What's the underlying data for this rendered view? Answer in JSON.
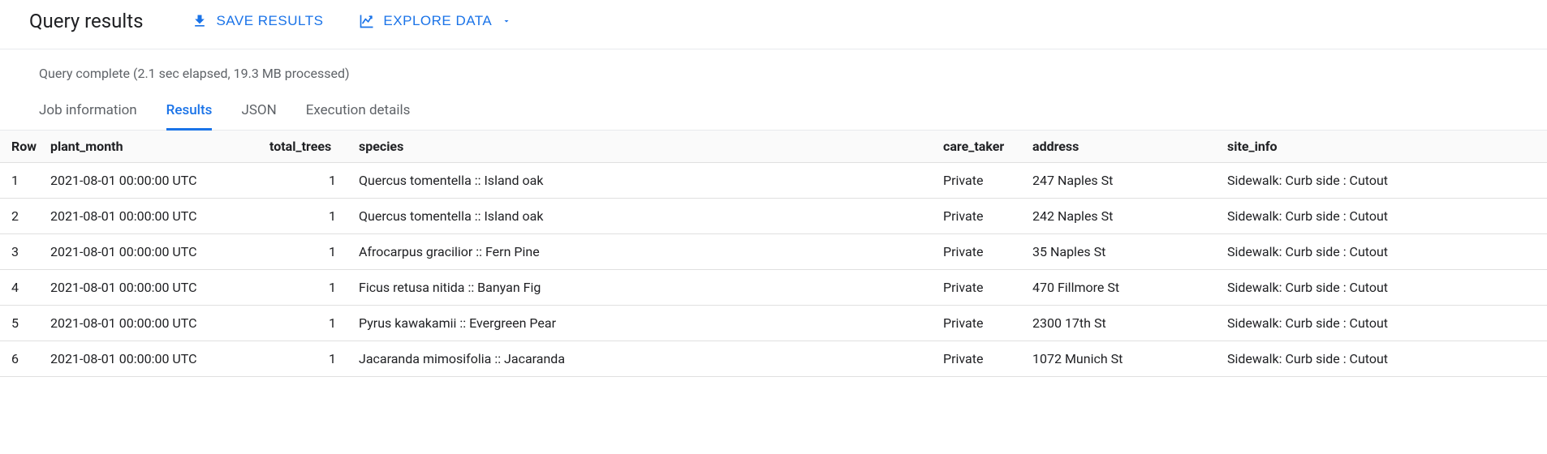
{
  "header": {
    "title": "Query results",
    "save_label": "SAVE RESULTS",
    "explore_label": "EXPLORE DATA"
  },
  "status": {
    "text": "Query complete (2.1 sec elapsed, 19.3 MB processed)"
  },
  "tabs": {
    "items": [
      {
        "label": "Job information",
        "active": false
      },
      {
        "label": "Results",
        "active": true
      },
      {
        "label": "JSON",
        "active": false
      },
      {
        "label": "Execution details",
        "active": false
      }
    ]
  },
  "table": {
    "columns": {
      "row": "Row",
      "plant_month": "plant_month",
      "total_trees": "total_trees",
      "species": "species",
      "care_taker": "care_taker",
      "address": "address",
      "site_info": "site_info"
    },
    "rows": [
      {
        "row": "1",
        "plant_month": "2021-08-01 00:00:00 UTC",
        "total_trees": "1",
        "species": "Quercus tomentella :: Island oak",
        "care_taker": "Private",
        "address": "247 Naples St",
        "site_info": "Sidewalk: Curb side : Cutout"
      },
      {
        "row": "2",
        "plant_month": "2021-08-01 00:00:00 UTC",
        "total_trees": "1",
        "species": "Quercus tomentella :: Island oak",
        "care_taker": "Private",
        "address": "242 Naples St",
        "site_info": "Sidewalk: Curb side : Cutout"
      },
      {
        "row": "3",
        "plant_month": "2021-08-01 00:00:00 UTC",
        "total_trees": "1",
        "species": "Afrocarpus gracilior :: Fern Pine",
        "care_taker": "Private",
        "address": "35 Naples St",
        "site_info": "Sidewalk: Curb side : Cutout"
      },
      {
        "row": "4",
        "plant_month": "2021-08-01 00:00:00 UTC",
        "total_trees": "1",
        "species": "Ficus retusa nitida :: Banyan Fig",
        "care_taker": "Private",
        "address": "470 Fillmore St",
        "site_info": "Sidewalk: Curb side : Cutout"
      },
      {
        "row": "5",
        "plant_month": "2021-08-01 00:00:00 UTC",
        "total_trees": "1",
        "species": "Pyrus kawakamii :: Evergreen Pear",
        "care_taker": "Private",
        "address": "2300 17th St",
        "site_info": "Sidewalk: Curb side : Cutout"
      },
      {
        "row": "6",
        "plant_month": "2021-08-01 00:00:00 UTC",
        "total_trees": "1",
        "species": "Jacaranda mimosifolia :: Jacaranda",
        "care_taker": "Private",
        "address": "1072 Munich St",
        "site_info": "Sidewalk: Curb side : Cutout"
      }
    ]
  },
  "colors": {
    "accent": "#1a73e8",
    "text": "#202124",
    "muted": "#5f6368",
    "border": "#e0e0e0",
    "header_bg": "#fafafa"
  }
}
